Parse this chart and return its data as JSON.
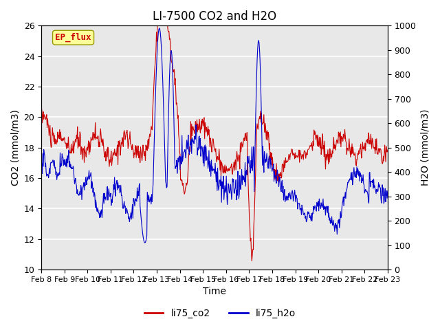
{
  "title": "LI-7500 CO2 and H2O",
  "xlabel": "Time",
  "ylabel_left": "CO2 (mmol/m3)",
  "ylabel_right": "H2O (mmol/m3)",
  "ylim_left": [
    10,
    26
  ],
  "ylim_right": [
    0,
    1000
  ],
  "yticks_left": [
    10,
    12,
    14,
    16,
    18,
    20,
    22,
    24,
    26
  ],
  "yticks_right": [
    0,
    100,
    200,
    300,
    400,
    500,
    600,
    700,
    800,
    900,
    1000
  ],
  "xtick_labels": [
    "Feb 8",
    "Feb 9",
    "Feb 10",
    "Feb 11",
    "Feb 12",
    "Feb 13",
    "Feb 14",
    "Feb 15",
    "Feb 16",
    "Feb 17",
    "Feb 18",
    "Feb 19",
    "Feb 20",
    "Feb 21",
    "Feb 22",
    "Feb 23"
  ],
  "color_co2": "#cc0000",
  "color_h2o": "#0000cc",
  "legend_label_co2": "li75_co2",
  "legend_label_h2o": "li75_h2o",
  "ep_flux_label": "EP_flux",
  "ep_flux_bg": "#ffff99",
  "ep_flux_border": "#999900",
  "ep_flux_text_color": "#cc0000",
  "plot_bg_color": "#e8e8e8",
  "grid_color": "#ffffff",
  "title_fontsize": 12,
  "axis_label_fontsize": 10,
  "tick_fontsize": 9,
  "legend_fontsize": 10
}
